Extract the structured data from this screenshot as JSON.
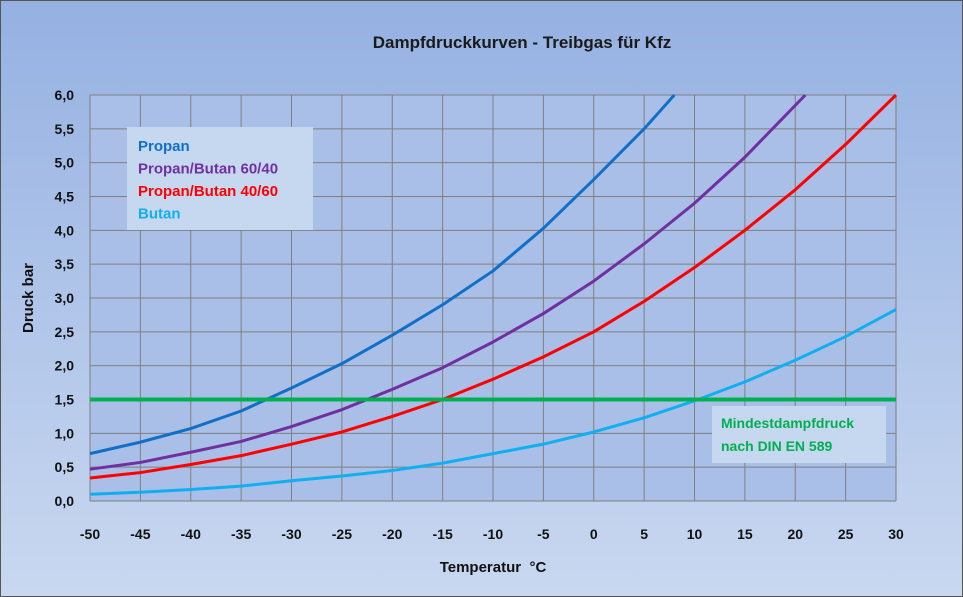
{
  "chart_data": {
    "type": "line",
    "title": "Dampfdruckkurven - Treibgas für Kfz",
    "xlabel": "Temperatur  °C",
    "ylabel": "Druck bar",
    "xlim": [
      -50,
      30
    ],
    "ylim": [
      0,
      6
    ],
    "xticks": [
      "-50",
      "-45",
      "-40",
      "-35",
      "-30",
      "-25",
      "-20",
      "-15",
      "-10",
      "-5",
      "0",
      "5",
      "10",
      "15",
      "20",
      "25",
      "30"
    ],
    "yticks": [
      "0,0",
      "0,5",
      "1,0",
      "1,5",
      "2,0",
      "2,5",
      "3,0",
      "3,5",
      "4,0",
      "4,5",
      "5,0",
      "5,5",
      "6,0"
    ],
    "grid": true,
    "legend_position": "top-left",
    "series": [
      {
        "name": "Propan",
        "color": "#1070c8",
        "x": [
          -50,
          -45,
          -40,
          -35,
          -30,
          -25,
          -20,
          -15,
          -10,
          -5,
          0,
          5,
          8
        ],
        "y": [
          0.7,
          0.87,
          1.07,
          1.33,
          1.67,
          2.03,
          2.45,
          2.9,
          3.4,
          4.03,
          4.75,
          5.5,
          6.0
        ]
      },
      {
        "name": "Propan/Butan 60/40",
        "color": "#7030a0",
        "x": [
          -50,
          -45,
          -40,
          -35,
          -30,
          -25,
          -20,
          -15,
          -10,
          -5,
          0,
          5,
          10,
          15,
          21
        ],
        "y": [
          0.47,
          0.57,
          0.72,
          0.88,
          1.1,
          1.35,
          1.65,
          1.97,
          2.35,
          2.77,
          3.25,
          3.8,
          4.4,
          5.08,
          6.0
        ]
      },
      {
        "name": "Propan/Butan 40/60",
        "color": "#ff0000",
        "x": [
          -50,
          -45,
          -40,
          -35,
          -30,
          -25,
          -20,
          -15,
          -10,
          -5,
          0,
          5,
          10,
          15,
          20,
          25,
          30
        ],
        "y": [
          0.34,
          0.42,
          0.54,
          0.67,
          0.84,
          1.02,
          1.25,
          1.5,
          1.8,
          2.13,
          2.5,
          2.95,
          3.45,
          4.0,
          4.6,
          5.27,
          6.0
        ]
      },
      {
        "name": "Butan",
        "color": "#10b0f0",
        "x": [
          -50,
          -45,
          -40,
          -35,
          -30,
          -25,
          -20,
          -15,
          -10,
          -5,
          0,
          5,
          10,
          15,
          20,
          25,
          30
        ],
        "y": [
          0.1,
          0.13,
          0.17,
          0.22,
          0.3,
          0.37,
          0.45,
          0.56,
          0.7,
          0.84,
          1.02,
          1.23,
          1.48,
          1.76,
          2.08,
          2.43,
          2.83
        ]
      }
    ],
    "reference_line": {
      "y": 1.5,
      "color": "#00b050",
      "label_line1": "Mindestdampfdruck",
      "label_line2": "nach DIN EN 589"
    }
  }
}
